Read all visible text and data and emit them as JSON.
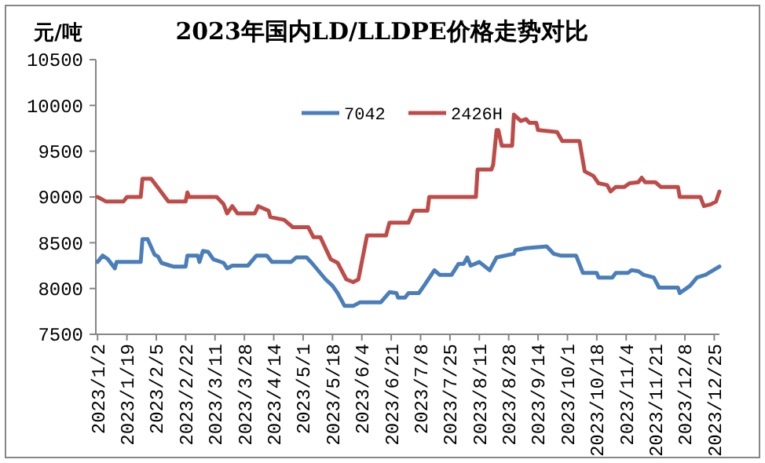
{
  "chart_data": {
    "type": "line",
    "title": "2023年国内LD/LLDPE价格走势对比",
    "ylabel": "元/吨",
    "xlim": [
      "2023-01-01",
      "2023-12-28"
    ],
    "xticks": [
      {
        "value": "2023-01-02",
        "label": "2023/1/2"
      },
      {
        "value": "2023-01-19",
        "label": "2023/1/19"
      },
      {
        "value": "2023-02-05",
        "label": "2023/2/5"
      },
      {
        "value": "2023-02-22",
        "label": "2023/2/22"
      },
      {
        "value": "2023-03-11",
        "label": "2023/3/11"
      },
      {
        "value": "2023-03-28",
        "label": "2023/3/28"
      },
      {
        "value": "2023-04-14",
        "label": "2023/4/14"
      },
      {
        "value": "2023-05-01",
        "label": "2023/5/1"
      },
      {
        "value": "2023-05-18",
        "label": "2023/5/18"
      },
      {
        "value": "2023-06-04",
        "label": "2023/6/4"
      },
      {
        "value": "2023-06-21",
        "label": "2023/6/21"
      },
      {
        "value": "2023-07-08",
        "label": "2023/7/8"
      },
      {
        "value": "2023-07-25",
        "label": "2023/7/25"
      },
      {
        "value": "2023-08-11",
        "label": "2023/8/11"
      },
      {
        "value": "2023-08-28",
        "label": "2023/8/28"
      },
      {
        "value": "2023-09-14",
        "label": "2023/9/14"
      },
      {
        "value": "2023-10-01",
        "label": "2023/10/1"
      },
      {
        "value": "2023-10-18",
        "label": "2023/10/18"
      },
      {
        "value": "2023-11-04",
        "label": "2023/11/4"
      },
      {
        "value": "2023-11-21",
        "label": "2023/11/21"
      },
      {
        "value": "2023-12-08",
        "label": "2023/12/8"
      },
      {
        "value": "2023-12-25",
        "label": "2023/12/25"
      }
    ],
    "ylim": [
      7500,
      10500
    ],
    "yticks": [
      7500,
      8000,
      8500,
      9000,
      9500,
      10000,
      10500
    ],
    "grid": false,
    "legend": "top",
    "marker": "none",
    "line_style": "solid",
    "series": [
      {
        "name": "7042",
        "color": "#4a7ebb",
        "x": [
          "2023-01-02",
          "2023-01-05",
          "2023-01-08",
          "2023-01-12",
          "2023-01-13",
          "2023-01-27",
          "2023-01-28",
          "2023-01-31",
          "2023-02-04",
          "2023-02-06",
          "2023-02-08",
          "2023-02-13",
          "2023-02-15",
          "2023-02-22",
          "2023-02-23",
          "2023-03-01",
          "2023-03-02",
          "2023-03-04",
          "2023-03-07",
          "2023-03-10",
          "2023-03-16",
          "2023-03-18",
          "2023-03-21",
          "2023-03-30",
          "2023-04-04",
          "2023-04-10",
          "2023-04-13",
          "2023-04-24",
          "2023-04-27",
          "2023-05-03",
          "2023-05-06",
          "2023-05-10",
          "2023-05-14",
          "2023-05-18",
          "2023-05-21",
          "2023-05-25",
          "2023-05-30",
          "2023-06-03",
          "2023-06-15",
          "2023-06-20",
          "2023-06-24",
          "2023-06-25",
          "2023-06-29",
          "2023-07-01",
          "2023-07-07",
          "2023-07-10",
          "2023-07-16",
          "2023-07-19",
          "2023-07-26",
          "2023-07-30",
          "2023-08-02",
          "2023-08-04",
          "2023-08-06",
          "2023-08-11",
          "2023-08-17",
          "2023-08-21",
          "2023-08-31",
          "2023-09-01",
          "2023-09-07",
          "2023-09-19",
          "2023-09-23",
          "2023-09-27",
          "2023-10-06",
          "2023-10-10",
          "2023-10-18",
          "2023-10-19",
          "2023-10-27",
          "2023-10-29",
          "2023-11-05",
          "2023-11-07",
          "2023-11-11",
          "2023-11-14",
          "2023-11-20",
          "2023-11-23",
          "2023-12-04",
          "2023-12-05",
          "2023-12-11",
          "2023-12-15",
          "2023-12-20",
          "2023-12-28"
        ],
        "values": [
          8290,
          8360,
          8320,
          8220,
          8290,
          8290,
          8540,
          8540,
          8370,
          8350,
          8280,
          8250,
          8240,
          8240,
          8360,
          8360,
          8290,
          8410,
          8400,
          8320,
          8280,
          8220,
          8250,
          8250,
          8360,
          8360,
          8290,
          8290,
          8340,
          8340,
          8280,
          8190,
          8100,
          8030,
          7950,
          7810,
          7810,
          7850,
          7850,
          7960,
          7950,
          7900,
          7900,
          7950,
          7950,
          8030,
          8200,
          8150,
          8150,
          8270,
          8270,
          8340,
          8250,
          8290,
          8200,
          8340,
          8380,
          8420,
          8440,
          8460,
          8380,
          8360,
          8360,
          8170,
          8170,
          8120,
          8120,
          8170,
          8170,
          8200,
          8190,
          8150,
          8120,
          8010,
          8010,
          7950,
          8030,
          8120,
          8150,
          8240
        ]
      },
      {
        "name": "2426H",
        "color": "#be4b48",
        "x": [
          "2023-01-02",
          "2023-01-07",
          "2023-01-17",
          "2023-01-19",
          "2023-01-27",
          "2023-01-28",
          "2023-02-02",
          "2023-02-06",
          "2023-02-12",
          "2023-02-22",
          "2023-02-23",
          "2023-02-24",
          "2023-03-12",
          "2023-03-16",
          "2023-03-18",
          "2023-03-21",
          "2023-03-24",
          "2023-04-03",
          "2023-04-05",
          "2023-04-11",
          "2023-04-12",
          "2023-04-20",
          "2023-04-25",
          "2023-05-04",
          "2023-05-07",
          "2023-05-11",
          "2023-05-17",
          "2023-05-21",
          "2023-05-26",
          "2023-05-30",
          "2023-06-02",
          "2023-06-07",
          "2023-06-11",
          "2023-06-18",
          "2023-06-20",
          "2023-07-01",
          "2023-07-04",
          "2023-07-12",
          "2023-07-13",
          "2023-08-09",
          "2023-08-10",
          "2023-08-18",
          "2023-08-19",
          "2023-08-21",
          "2023-08-22",
          "2023-08-24",
          "2023-08-30",
          "2023-08-31",
          "2023-09-04",
          "2023-09-07",
          "2023-09-09",
          "2023-09-13",
          "2023-09-14",
          "2023-09-25",
          "2023-09-28",
          "2023-10-08",
          "2023-10-11",
          "2023-10-16",
          "2023-10-19",
          "2023-10-24",
          "2023-10-26",
          "2023-10-29",
          "2023-11-03",
          "2023-11-06",
          "2023-11-11",
          "2023-11-13",
          "2023-11-15",
          "2023-11-21",
          "2023-11-24",
          "2023-12-04",
          "2023-12-05",
          "2023-12-17",
          "2023-12-19",
          "2023-12-23",
          "2023-12-26",
          "2023-12-28"
        ],
        "values": [
          9000,
          8950,
          8950,
          9000,
          9000,
          9200,
          9200,
          9100,
          8950,
          8950,
          9050,
          9000,
          9000,
          8920,
          8820,
          8900,
          8820,
          8820,
          8900,
          8850,
          8780,
          8750,
          8670,
          8670,
          8560,
          8560,
          8320,
          8280,
          8100,
          8070,
          8100,
          8580,
          8580,
          8580,
          8720,
          8720,
          8850,
          8850,
          9000,
          9000,
          9300,
          9300,
          9350,
          9730,
          9730,
          9560,
          9560,
          9900,
          9830,
          9850,
          9810,
          9810,
          9730,
          9710,
          9610,
          9610,
          9280,
          9230,
          9150,
          9130,
          9060,
          9110,
          9110,
          9150,
          9160,
          9210,
          9160,
          9160,
          9110,
          9110,
          9000,
          9000,
          8900,
          8920,
          8950,
          9060
        ]
      }
    ]
  }
}
